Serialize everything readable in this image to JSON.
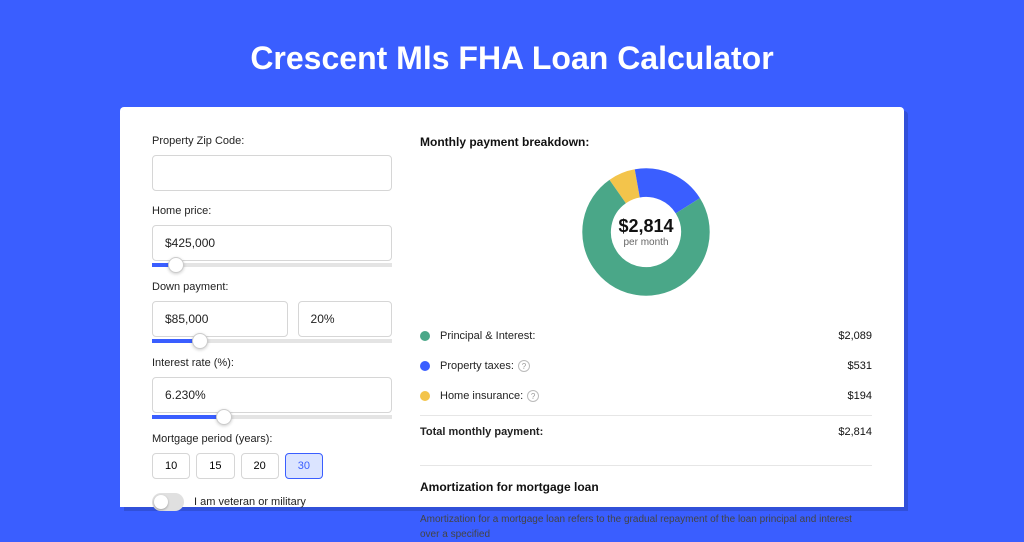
{
  "title": "Crescent Mls FHA Loan Calculator",
  "colors": {
    "page_bg": "#3a5eff",
    "card_bg": "#ffffff",
    "text": "#222222",
    "muted": "#666666",
    "border": "#d6d6d6",
    "slider_fill": "#3a5eff",
    "active_period_bg": "#dbe4ff"
  },
  "form": {
    "zip": {
      "label": "Property Zip Code:",
      "value": ""
    },
    "home_price": {
      "label": "Home price:",
      "value": "$425,000",
      "slider_fill_pct": 10,
      "slider_thumb_pct": 10
    },
    "down_payment": {
      "label": "Down payment:",
      "amount": "$85,000",
      "percent": "20%",
      "slider_fill_pct": 20,
      "slider_thumb_pct": 20
    },
    "interest_rate": {
      "label": "Interest rate (%):",
      "value": "6.230%",
      "slider_fill_pct": 30,
      "slider_thumb_pct": 30
    },
    "mortgage_period": {
      "label": "Mortgage period (years):",
      "options": [
        "10",
        "15",
        "20",
        "30"
      ],
      "active_index": 3
    },
    "veteran": {
      "label": "I am veteran or military",
      "checked": false
    }
  },
  "breakdown": {
    "title": "Monthly payment breakdown:",
    "donut": {
      "amount": "$2,814",
      "sub": "per month",
      "slices": [
        {
          "color": "#4aa788",
          "pct": 74.2
        },
        {
          "color": "#3a5eff",
          "pct": 18.9
        },
        {
          "color": "#f3c44b",
          "pct": 6.9
        }
      ],
      "stroke_width": 22
    },
    "items": [
      {
        "label": "Principal & Interest:",
        "value": "$2,089",
        "color": "#4aa788",
        "info": false
      },
      {
        "label": "Property taxes:",
        "value": "$531",
        "color": "#3a5eff",
        "info": true
      },
      {
        "label": "Home insurance:",
        "value": "$194",
        "color": "#f3c44b",
        "info": true
      }
    ],
    "total": {
      "label": "Total monthly payment:",
      "value": "$2,814"
    }
  },
  "amortization": {
    "title": "Amortization for mortgage loan",
    "text": "Amortization for a mortgage loan refers to the gradual repayment of the loan principal and interest over a specified"
  }
}
